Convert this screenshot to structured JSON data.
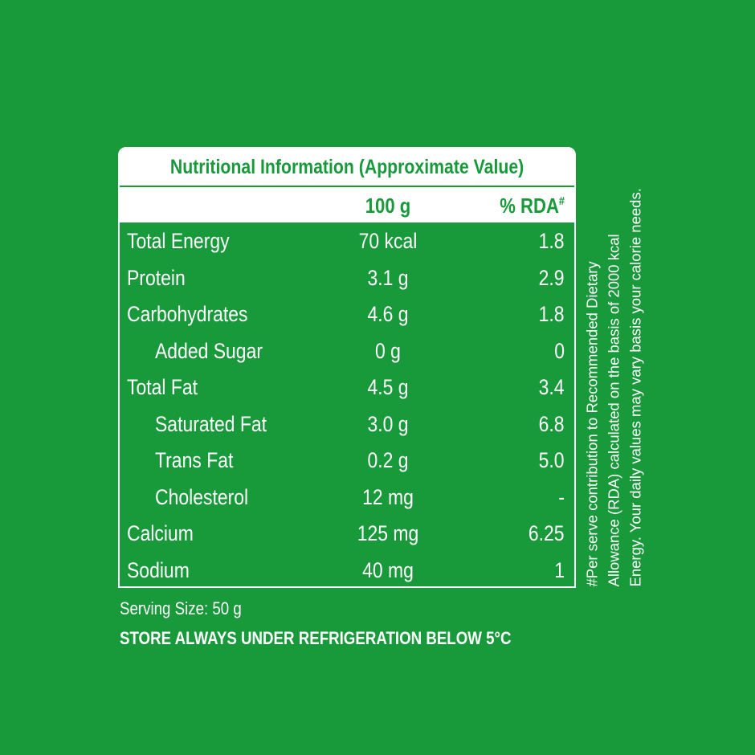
{
  "label": {
    "title": "Nutritional Information (Approximate Value)",
    "header": {
      "amount": "100 g",
      "rda": "% RDA",
      "rda_mark": "#"
    },
    "rows": [
      {
        "name": "Total Energy",
        "amount": "70 kcal",
        "rda": "1.8"
      },
      {
        "name": "Protein",
        "amount": "3.1 g",
        "rda": "2.9"
      },
      {
        "name": "Carbohydrates",
        "amount": "4.6 g",
        "rda": "1.8"
      },
      {
        "name": "Added Sugar",
        "amount": "0 g",
        "rda": "0",
        "indent": true
      },
      {
        "name": "Total Fat",
        "amount": "4.5 g",
        "rda": "3.4"
      },
      {
        "name": "Saturated Fat",
        "amount": "3.0 g",
        "rda": "6.8",
        "indent": true
      },
      {
        "name": "Trans Fat",
        "amount": "0.2 g",
        "rda": "5.0",
        "indent": true
      },
      {
        "name": "Cholesterol",
        "amount": "12 mg",
        "rda": "-",
        "indent": true
      },
      {
        "name": "Calcium",
        "amount": "125 mg",
        "rda": "6.25"
      },
      {
        "name": "Sodium",
        "amount": "40 mg",
        "rda": "1"
      }
    ],
    "footnote": [
      "#Per serve contribution to Recommended Dietary",
      "Allowance (RDA) calculated on the basis of 2000 kcal",
      "Energy. Your daily values may vary basis your calorie needs."
    ],
    "serving_size": "Serving Size: 50 g",
    "storage": "STORE ALWAYS UNDER REFRIGERATION BELOW 5°C"
  }
}
